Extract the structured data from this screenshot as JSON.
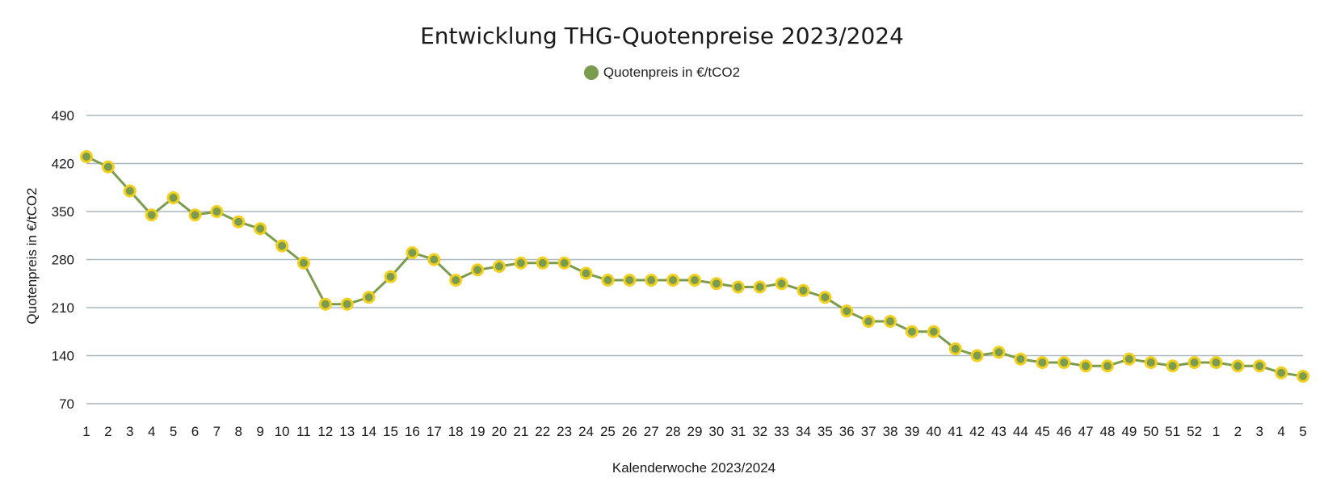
{
  "chart_data": {
    "type": "line",
    "title": "Entwicklung THG-Quotenpreise 2023/2024",
    "xlabel": "Kalenderwoche 2023/2024",
    "ylabel": "Quotenpreis in €/tCO2",
    "ylim": [
      70,
      490
    ],
    "yticks": [
      70,
      140,
      210,
      280,
      350,
      420,
      490
    ],
    "grid": true,
    "legend_position": "top-center",
    "categories": [
      "1",
      "2",
      "3",
      "4",
      "5",
      "6",
      "7",
      "8",
      "9",
      "10",
      "11",
      "12",
      "13",
      "14",
      "15",
      "16",
      "17",
      "18",
      "19",
      "20",
      "21",
      "22",
      "23",
      "24",
      "25",
      "26",
      "27",
      "28",
      "29",
      "30",
      "31",
      "32",
      "33",
      "34",
      "35",
      "36",
      "37",
      "38",
      "39",
      "40",
      "41",
      "42",
      "43",
      "44",
      "45",
      "46",
      "47",
      "48",
      "49",
      "50",
      "51",
      "52",
      "1",
      "2",
      "3",
      "4",
      "5"
    ],
    "series": [
      {
        "name": "Quotenpreis in €/tCO2",
        "line_color": "#7b9c4e",
        "marker_fill": "#7b9c4e",
        "marker_stroke": "#f2cf1c",
        "values": [
          430,
          415,
          380,
          345,
          370,
          345,
          350,
          335,
          325,
          300,
          275,
          215,
          215,
          225,
          255,
          290,
          280,
          250,
          265,
          270,
          275,
          275,
          275,
          260,
          250,
          250,
          250,
          250,
          250,
          245,
          240,
          240,
          245,
          235,
          225,
          205,
          190,
          190,
          175,
          175,
          150,
          140,
          145,
          135,
          130,
          130,
          125,
          125,
          135,
          130,
          125,
          130,
          130,
          125,
          125,
          115,
          110
        ]
      }
    ]
  },
  "colors": {
    "gridline": "#a9b7bf",
    "legend_marker": "#7b9c4e"
  }
}
